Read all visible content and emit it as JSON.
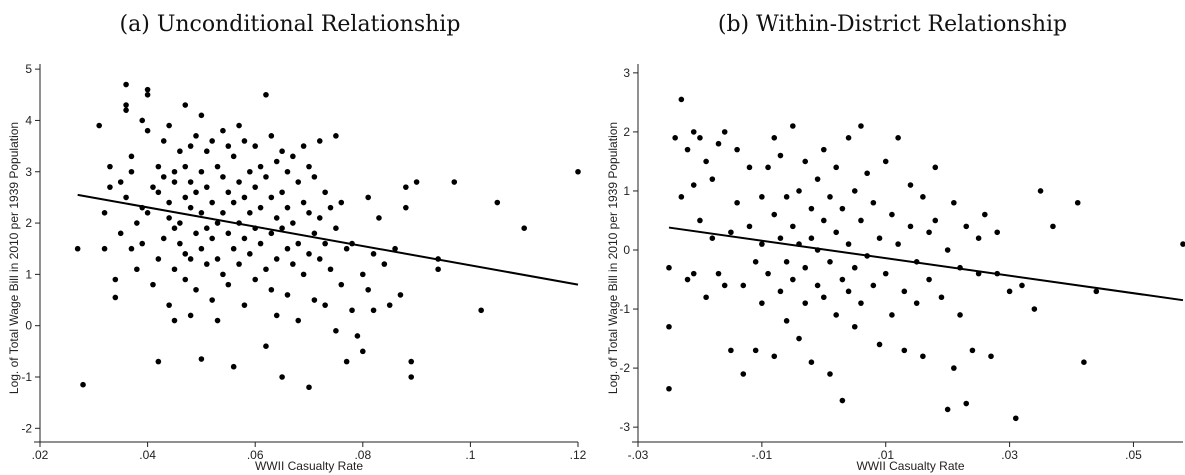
{
  "chart_data": [
    {
      "type": "scatter",
      "title": "(a) Unconditional Relationship",
      "xlabel": "WWII Casualty Rate",
      "ylabel": "Log. of Total Wage Bill in 2010 per 1939 Population",
      "xlim": [
        0.02,
        0.12
      ],
      "ylim": [
        -2.15,
        5.1
      ],
      "xticks": [
        0.02,
        0.04,
        0.06,
        0.08,
        0.1,
        0.12
      ],
      "xtick_labels": [
        ".02",
        ".04",
        ".06",
        ".08",
        ".1",
        ".12"
      ],
      "yticks": [
        -2,
        -1,
        0,
        1,
        2,
        3,
        4,
        5
      ],
      "ytick_labels": [
        "-2",
        "-1",
        "0",
        "1",
        "2",
        "3",
        "4",
        "5"
      ],
      "fit_line": {
        "x": [
          0.027,
          0.12
        ],
        "y": [
          2.55,
          0.8
        ]
      },
      "points": [
        [
          0.027,
          1.5
        ],
        [
          0.028,
          -1.15
        ],
        [
          0.031,
          3.9
        ],
        [
          0.032,
          2.2
        ],
        [
          0.032,
          1.5
        ],
        [
          0.033,
          3.1
        ],
        [
          0.033,
          2.7
        ],
        [
          0.034,
          0.9
        ],
        [
          0.034,
          0.55
        ],
        [
          0.035,
          2.8
        ],
        [
          0.035,
          1.8
        ],
        [
          0.036,
          4.7
        ],
        [
          0.036,
          4.2
        ],
        [
          0.036,
          4.3
        ],
        [
          0.036,
          2.5
        ],
        [
          0.037,
          3.0
        ],
        [
          0.037,
          1.5
        ],
        [
          0.037,
          3.3
        ],
        [
          0.038,
          1.1
        ],
        [
          0.038,
          2.0
        ],
        [
          0.039,
          4.0
        ],
        [
          0.039,
          1.6
        ],
        [
          0.039,
          2.3
        ],
        [
          0.04,
          4.6
        ],
        [
          0.04,
          4.5
        ],
        [
          0.04,
          3.8
        ],
        [
          0.04,
          2.2
        ],
        [
          0.041,
          2.7
        ],
        [
          0.041,
          0.8
        ],
        [
          0.042,
          -0.7
        ],
        [
          0.042,
          3.1
        ],
        [
          0.042,
          2.6
        ],
        [
          0.042,
          1.3
        ],
        [
          0.043,
          3.6
        ],
        [
          0.043,
          1.7
        ],
        [
          0.043,
          2.9
        ],
        [
          0.044,
          3.9
        ],
        [
          0.044,
          2.1
        ],
        [
          0.044,
          2.4
        ],
        [
          0.044,
          0.4
        ],
        [
          0.045,
          0.1
        ],
        [
          0.045,
          3.0
        ],
        [
          0.045,
          2.8
        ],
        [
          0.045,
          1.9
        ],
        [
          0.045,
          1.1
        ],
        [
          0.046,
          3.4
        ],
        [
          0.046,
          2.0
        ],
        [
          0.046,
          1.6
        ],
        [
          0.047,
          4.3
        ],
        [
          0.047,
          3.1
        ],
        [
          0.047,
          2.5
        ],
        [
          0.047,
          1.4
        ],
        [
          0.047,
          0.9
        ],
        [
          0.048,
          3.5
        ],
        [
          0.048,
          2.8
        ],
        [
          0.048,
          2.3
        ],
        [
          0.048,
          1.3
        ],
        [
          0.048,
          0.2
        ],
        [
          0.049,
          3.7
        ],
        [
          0.049,
          2.6
        ],
        [
          0.049,
          1.8
        ],
        [
          0.049,
          0.7
        ],
        [
          0.05,
          4.1
        ],
        [
          0.05,
          3.0
        ],
        [
          0.05,
          2.2
        ],
        [
          0.05,
          1.5
        ],
        [
          0.05,
          -0.65
        ],
        [
          0.051,
          3.4
        ],
        [
          0.051,
          2.7
        ],
        [
          0.051,
          1.9
        ],
        [
          0.051,
          1.2
        ],
        [
          0.052,
          3.6
        ],
        [
          0.052,
          2.4
        ],
        [
          0.052,
          1.7
        ],
        [
          0.052,
          0.5
        ],
        [
          0.053,
          3.1
        ],
        [
          0.053,
          2.0
        ],
        [
          0.053,
          1.3
        ],
        [
          0.053,
          0.1
        ],
        [
          0.054,
          3.8
        ],
        [
          0.054,
          2.9
        ],
        [
          0.054,
          2.2
        ],
        [
          0.054,
          1.0
        ],
        [
          0.055,
          3.5
        ],
        [
          0.055,
          2.6
        ],
        [
          0.055,
          1.8
        ],
        [
          0.055,
          0.8
        ],
        [
          0.056,
          3.3
        ],
        [
          0.056,
          2.4
        ],
        [
          0.056,
          1.5
        ],
        [
          0.056,
          -0.8
        ],
        [
          0.057,
          3.9
        ],
        [
          0.057,
          2.8
        ],
        [
          0.057,
          2.0
        ],
        [
          0.057,
          1.2
        ],
        [
          0.058,
          3.6
        ],
        [
          0.058,
          2.5
        ],
        [
          0.058,
          1.7
        ],
        [
          0.058,
          0.4
        ],
        [
          0.059,
          3.0
        ],
        [
          0.059,
          2.2
        ],
        [
          0.059,
          1.4
        ],
        [
          0.06,
          3.5
        ],
        [
          0.06,
          2.7
        ],
        [
          0.06,
          1.9
        ],
        [
          0.06,
          0.9
        ],
        [
          0.061,
          3.1
        ],
        [
          0.061,
          2.3
        ],
        [
          0.061,
          1.6
        ],
        [
          0.062,
          4.5
        ],
        [
          0.062,
          2.9
        ],
        [
          0.062,
          1.1
        ],
        [
          0.062,
          -0.4
        ],
        [
          0.063,
          3.7
        ],
        [
          0.063,
          2.5
        ],
        [
          0.063,
          1.8
        ],
        [
          0.063,
          0.7
        ],
        [
          0.064,
          3.2
        ],
        [
          0.064,
          2.1
        ],
        [
          0.064,
          1.3
        ],
        [
          0.064,
          0.2
        ],
        [
          0.065,
          3.4
        ],
        [
          0.065,
          2.6
        ],
        [
          0.065,
          1.9
        ],
        [
          0.065,
          -1.0
        ],
        [
          0.066,
          3.0
        ],
        [
          0.066,
          2.3
        ],
        [
          0.066,
          1.5
        ],
        [
          0.066,
          0.6
        ],
        [
          0.067,
          3.3
        ],
        [
          0.067,
          2.0
        ],
        [
          0.067,
          1.2
        ],
        [
          0.068,
          2.8
        ],
        [
          0.068,
          1.6
        ],
        [
          0.068,
          0.1
        ],
        [
          0.069,
          3.5
        ],
        [
          0.069,
          2.4
        ],
        [
          0.069,
          1.0
        ],
        [
          0.07,
          3.1
        ],
        [
          0.07,
          2.2
        ],
        [
          0.07,
          1.4
        ],
        [
          0.07,
          -1.2
        ],
        [
          0.071,
          2.9
        ],
        [
          0.071,
          1.8
        ],
        [
          0.071,
          0.5
        ],
        [
          0.072,
          3.6
        ],
        [
          0.072,
          2.1
        ],
        [
          0.072,
          1.3
        ],
        [
          0.073,
          2.6
        ],
        [
          0.073,
          1.6
        ],
        [
          0.073,
          0.4
        ],
        [
          0.074,
          2.3
        ],
        [
          0.074,
          1.1
        ],
        [
          0.075,
          3.7
        ],
        [
          0.075,
          1.9
        ],
        [
          0.075,
          -0.1
        ],
        [
          0.076,
          2.4
        ],
        [
          0.076,
          0.8
        ],
        [
          0.077,
          1.5
        ],
        [
          0.077,
          -0.7
        ],
        [
          0.078,
          1.6
        ],
        [
          0.078,
          0.3
        ],
        [
          0.079,
          -0.2
        ],
        [
          0.08,
          1.0
        ],
        [
          0.08,
          -0.5
        ],
        [
          0.081,
          2.5
        ],
        [
          0.081,
          0.7
        ],
        [
          0.082,
          1.4
        ],
        [
          0.082,
          0.3
        ],
        [
          0.083,
          2.1
        ],
        [
          0.084,
          1.2
        ],
        [
          0.085,
          0.4
        ],
        [
          0.086,
          1.5
        ],
        [
          0.087,
          0.6
        ],
        [
          0.088,
          2.7
        ],
        [
          0.088,
          2.3
        ],
        [
          0.089,
          -0.7
        ],
        [
          0.089,
          -1.0
        ],
        [
          0.09,
          2.8
        ],
        [
          0.094,
          1.1
        ],
        [
          0.094,
          1.3
        ],
        [
          0.097,
          2.8
        ],
        [
          0.102,
          0.3
        ],
        [
          0.105,
          2.4
        ],
        [
          0.11,
          1.9
        ],
        [
          0.12,
          3.0
        ]
      ]
    },
    {
      "type": "scatter",
      "title": "(b) Within-District Relationship",
      "xlabel": "WWII Casualty Rate",
      "ylabel": "Log. of Total Wage Bill in 2010 per 1939 Population",
      "xlim": [
        -0.03,
        0.058
      ],
      "ylim": [
        -3.15,
        3.15
      ],
      "xticks": [
        -0.03,
        -0.01,
        0.01,
        0.03,
        0.05
      ],
      "xtick_labels": [
        "-.03",
        "-.01",
        ".01",
        ".03",
        ".05"
      ],
      "yticks": [
        -3,
        -2,
        -1,
        0,
        1,
        2,
        3
      ],
      "ytick_labels": [
        "-3",
        "-2",
        "-1",
        "0",
        "1",
        "2",
        "3"
      ],
      "fit_line": {
        "x": [
          -0.025,
          0.058
        ],
        "y": [
          0.38,
          -0.85
        ]
      },
      "points": [
        [
          -0.025,
          -2.35
        ],
        [
          -0.025,
          -1.3
        ],
        [
          -0.025,
          -0.3
        ],
        [
          -0.024,
          1.9
        ],
        [
          -0.023,
          2.55
        ],
        [
          -0.023,
          0.9
        ],
        [
          -0.022,
          1.7
        ],
        [
          -0.022,
          -0.5
        ],
        [
          -0.021,
          2.0
        ],
        [
          -0.021,
          1.1
        ],
        [
          -0.021,
          -0.4
        ],
        [
          -0.02,
          1.9
        ],
        [
          -0.02,
          0.5
        ],
        [
          -0.019,
          -0.8
        ],
        [
          -0.019,
          1.5
        ],
        [
          -0.018,
          1.2
        ],
        [
          -0.018,
          0.2
        ],
        [
          -0.017,
          -0.4
        ],
        [
          -0.017,
          1.8
        ],
        [
          -0.016,
          2.0
        ],
        [
          -0.016,
          -0.6
        ],
        [
          -0.015,
          0.3
        ],
        [
          -0.015,
          -1.7
        ],
        [
          -0.014,
          1.7
        ],
        [
          -0.014,
          0.8
        ],
        [
          -0.013,
          -0.6
        ],
        [
          -0.013,
          -2.1
        ],
        [
          -0.012,
          0.4
        ],
        [
          -0.012,
          1.4
        ],
        [
          -0.011,
          -0.2
        ],
        [
          -0.011,
          -1.7
        ],
        [
          -0.01,
          0.9
        ],
        [
          -0.01,
          0.1
        ],
        [
          -0.01,
          -0.9
        ],
        [
          -0.009,
          1.4
        ],
        [
          -0.009,
          -0.4
        ],
        [
          -0.008,
          0.6
        ],
        [
          -0.008,
          1.9
        ],
        [
          -0.008,
          -1.8
        ],
        [
          -0.007,
          0.2
        ],
        [
          -0.007,
          -0.7
        ],
        [
          -0.007,
          1.6
        ],
        [
          -0.006,
          0.9
        ],
        [
          -0.006,
          -0.2
        ],
        [
          -0.006,
          -1.2
        ],
        [
          -0.005,
          2.1
        ],
        [
          -0.005,
          0.4
        ],
        [
          -0.005,
          -0.5
        ],
        [
          -0.004,
          1.0
        ],
        [
          -0.004,
          0.1
        ],
        [
          -0.004,
          -1.5
        ],
        [
          -0.003,
          1.5
        ],
        [
          -0.003,
          -0.3
        ],
        [
          -0.003,
          -0.9
        ],
        [
          -0.002,
          0.7
        ],
        [
          -0.002,
          -1.9
        ],
        [
          -0.002,
          0.2
        ],
        [
          -0.001,
          1.2
        ],
        [
          -0.001,
          -0.6
        ],
        [
          -0.001,
          0.0
        ],
        [
          0.0,
          1.7
        ],
        [
          0.0,
          0.5
        ],
        [
          0.0,
          -0.8
        ],
        [
          0.001,
          -2.1
        ],
        [
          0.001,
          0.9
        ],
        [
          0.001,
          -0.2
        ],
        [
          0.002,
          0.3
        ],
        [
          0.002,
          -1.1
        ],
        [
          0.002,
          1.4
        ],
        [
          0.003,
          -0.5
        ],
        [
          0.003,
          0.7
        ],
        [
          0.003,
          -2.55
        ],
        [
          0.004,
          1.9
        ],
        [
          0.004,
          0.1
        ],
        [
          0.004,
          -0.7
        ],
        [
          0.005,
          1.0
        ],
        [
          0.005,
          -0.3
        ],
        [
          0.005,
          -1.3
        ],
        [
          0.006,
          0.5
        ],
        [
          0.006,
          -0.9
        ],
        [
          0.006,
          2.1
        ],
        [
          0.007,
          -0.1
        ],
        [
          0.007,
          1.3
        ],
        [
          0.008,
          -0.6
        ],
        [
          0.008,
          0.8
        ],
        [
          0.009,
          -1.6
        ],
        [
          0.009,
          0.2
        ],
        [
          0.01,
          1.5
        ],
        [
          0.01,
          -0.4
        ],
        [
          0.011,
          0.6
        ],
        [
          0.011,
          -1.1
        ],
        [
          0.012,
          1.9
        ],
        [
          0.012,
          0.1
        ],
        [
          0.013,
          -0.7
        ],
        [
          0.013,
          -1.7
        ],
        [
          0.014,
          0.4
        ],
        [
          0.014,
          1.1
        ],
        [
          0.015,
          -0.2
        ],
        [
          0.015,
          -0.9
        ],
        [
          0.016,
          0.9
        ],
        [
          0.016,
          -1.8
        ],
        [
          0.017,
          0.3
        ],
        [
          0.017,
          -0.5
        ],
        [
          0.018,
          1.4
        ],
        [
          0.018,
          0.5
        ],
        [
          0.019,
          -0.8
        ],
        [
          0.02,
          0.0
        ],
        [
          0.02,
          -2.7
        ],
        [
          0.021,
          -2.0
        ],
        [
          0.021,
          0.8
        ],
        [
          0.022,
          -0.3
        ],
        [
          0.022,
          -1.1
        ],
        [
          0.023,
          0.4
        ],
        [
          0.023,
          -2.6
        ],
        [
          0.024,
          -1.7
        ],
        [
          0.025,
          0.2
        ],
        [
          0.025,
          -0.4
        ],
        [
          0.026,
          0.6
        ],
        [
          0.027,
          -1.8
        ],
        [
          0.028,
          0.3
        ],
        [
          0.028,
          -0.4
        ],
        [
          0.03,
          -0.7
        ],
        [
          0.031,
          -2.85
        ],
        [
          0.032,
          -0.6
        ],
        [
          0.034,
          -1.0
        ],
        [
          0.035,
          1.0
        ],
        [
          0.037,
          0.4
        ],
        [
          0.041,
          0.8
        ],
        [
          0.042,
          -1.9
        ],
        [
          0.044,
          -0.7
        ],
        [
          0.058,
          0.1
        ]
      ]
    }
  ]
}
